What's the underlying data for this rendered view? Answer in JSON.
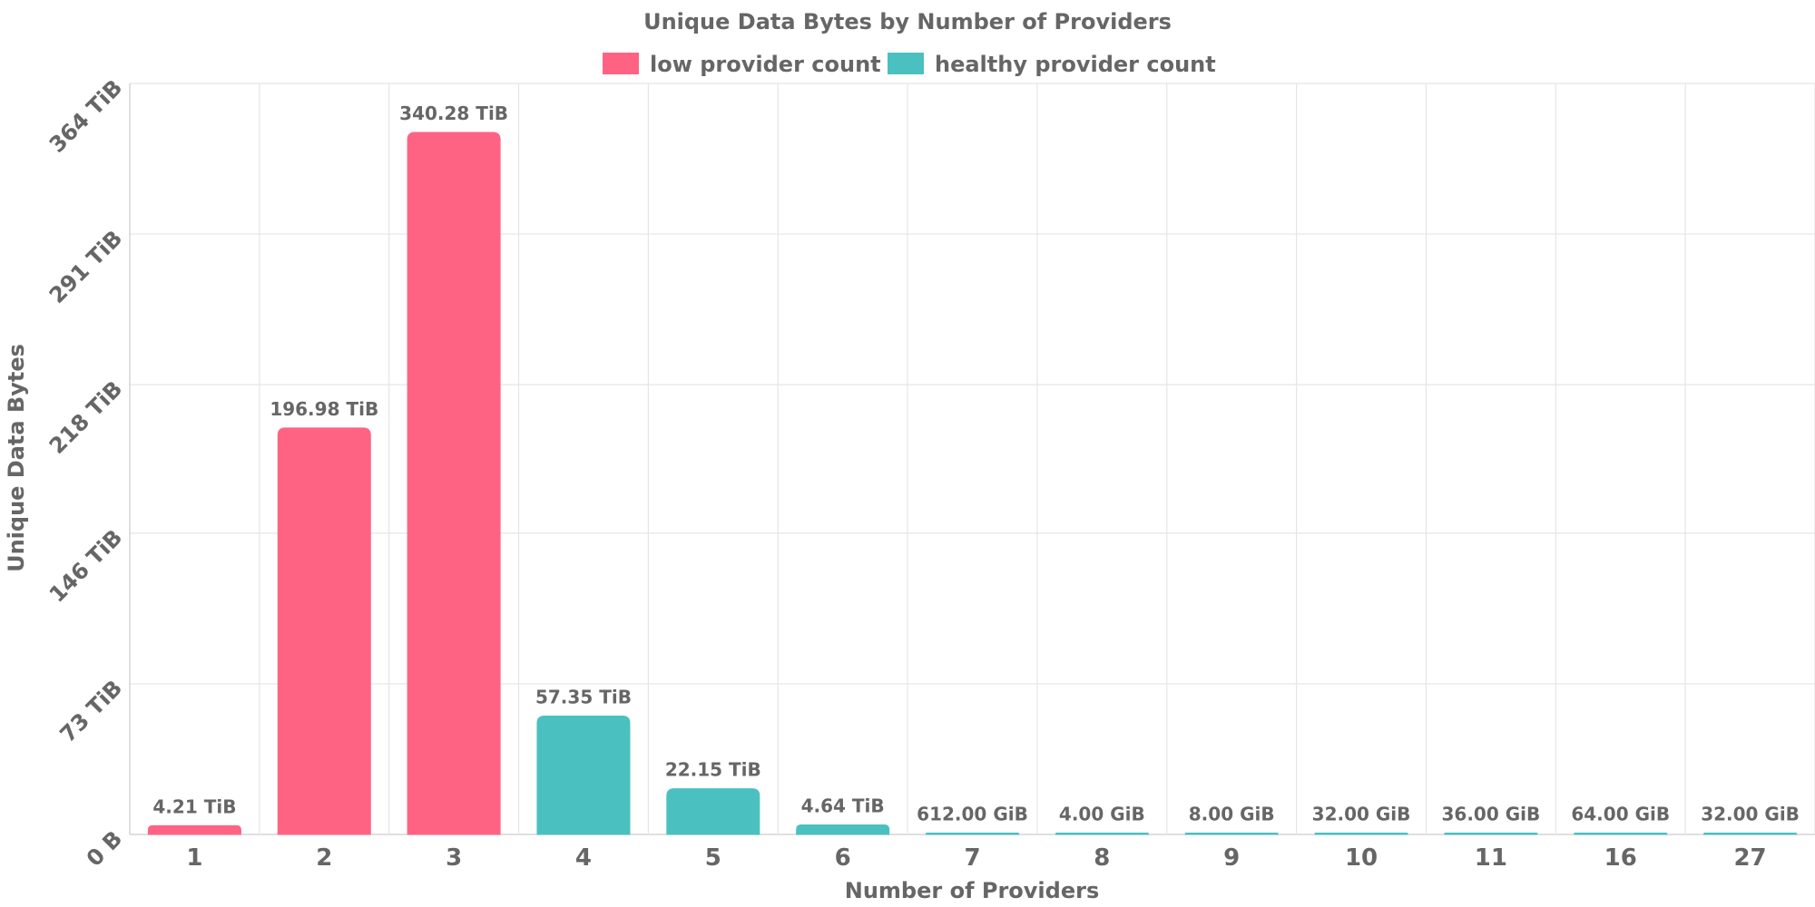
{
  "chart_data": {
    "type": "bar",
    "title": "Unique Data Bytes by Number of Providers",
    "xlabel": "Number of Providers",
    "ylabel": "Unique Data Bytes",
    "ylim_tib": [
      0,
      364
    ],
    "y_ticks": [
      {
        "value": 0,
        "label": "0 B"
      },
      {
        "value": 73,
        "label": "73 TiB"
      },
      {
        "value": 146,
        "label": "146 TiB"
      },
      {
        "value": 218,
        "label": "218 TiB"
      },
      {
        "value": 291,
        "label": "291 TiB"
      },
      {
        "value": 364,
        "label": "364 TiB"
      }
    ],
    "grid": true,
    "legend_position": "top-center",
    "legend": [
      {
        "name": "low provider count",
        "color": "#ff6384"
      },
      {
        "name": "healthy provider count",
        "color": "#4bc0c0"
      }
    ],
    "categories": [
      "1",
      "2",
      "3",
      "4",
      "5",
      "6",
      "7",
      "8",
      "9",
      "10",
      "11",
      "16",
      "27"
    ],
    "values_tib": [
      4.21,
      196.98,
      340.28,
      57.35,
      22.15,
      4.64,
      0.5977,
      0.0039,
      0.0078,
      0.03125,
      0.03516,
      0.0625,
      0.03125
    ],
    "data_labels": [
      "4.21 TiB",
      "196.98 TiB",
      "340.28 TiB",
      "57.35 TiB",
      "22.15 TiB",
      "4.64 TiB",
      "612.00 GiB",
      "4.00 GiB",
      "8.00 GiB",
      "32.00 GiB",
      "36.00 GiB",
      "64.00 GiB",
      "32.00 GiB"
    ],
    "series_index": [
      0,
      0,
      0,
      1,
      1,
      1,
      1,
      1,
      1,
      1,
      1,
      1,
      1
    ]
  }
}
